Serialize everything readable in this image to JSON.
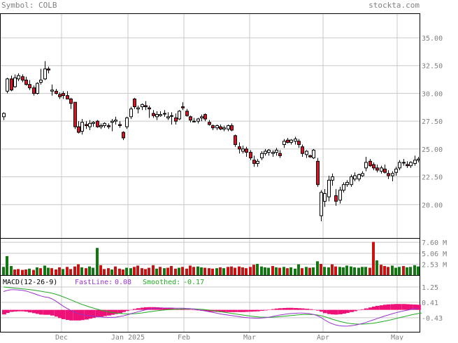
{
  "header": {
    "symbol_label": "Symbol:",
    "symbol": "COLB",
    "brand": "stockta.com"
  },
  "colors": {
    "up_fill": "#ffffff",
    "down_fill": "#dd1122",
    "outline": "#000000",
    "vol_up": "#117711",
    "vol_down": "#cc1111",
    "fast_line": "#9933cc",
    "smooth_line": "#22aa22",
    "histogram": "#ee1177",
    "grid": "#c8c8c8"
  },
  "chart_data": [
    {
      "type": "candlestick",
      "title": "",
      "ylim": [
        17.0,
        37.2
      ],
      "yticks": [
        "35.00",
        "32.50",
        "30.00",
        "27.50",
        "25.00",
        "22.50",
        "20.00"
      ],
      "xticks": [
        "Dec",
        "Jan 2025",
        "Feb",
        "Mar",
        "Apr",
        "May"
      ],
      "grid": true,
      "ohlc": [
        [
          27.9,
          28.3,
          27.6,
          28.2
        ],
        [
          30.2,
          31.4,
          30.0,
          31.3
        ],
        [
          31.3,
          31.6,
          30.2,
          30.3
        ],
        [
          30.6,
          31.7,
          30.5,
          31.4
        ],
        [
          31.3,
          31.8,
          31.1,
          31.6
        ],
        [
          31.5,
          31.7,
          31.0,
          31.2
        ],
        [
          31.2,
          31.5,
          30.7,
          30.8
        ],
        [
          30.8,
          31.2,
          30.3,
          30.5
        ],
        [
          30.5,
          30.7,
          29.8,
          30.0
        ],
        [
          30.0,
          31.0,
          29.9,
          30.9
        ],
        [
          31.0,
          32.2,
          30.8,
          31.2
        ],
        [
          31.3,
          32.9,
          31.2,
          32.2
        ],
        [
          32.2,
          32.4,
          31.8,
          32.1
        ],
        [
          30.2,
          30.8,
          29.8,
          30.3
        ],
        [
          30.2,
          30.4,
          29.9,
          30.0
        ],
        [
          29.9,
          30.1,
          29.5,
          29.7
        ],
        [
          30.0,
          30.2,
          29.5,
          29.8
        ],
        [
          29.8,
          30.2,
          29.5,
          29.5
        ],
        [
          29.5,
          29.6,
          28.6,
          29.1
        ],
        [
          29.2,
          29.2,
          26.8,
          27.0
        ],
        [
          27.0,
          27.5,
          26.4,
          26.5
        ],
        [
          26.6,
          27.7,
          26.3,
          27.4
        ],
        [
          27.2,
          27.5,
          26.8,
          27.1
        ],
        [
          27.0,
          27.6,
          26.7,
          27.3
        ],
        [
          27.3,
          27.5,
          27.0,
          27.4
        ],
        [
          27.5,
          27.6,
          26.9,
          27.0
        ],
        [
          27.0,
          27.3,
          26.8,
          27.1
        ],
        [
          27.1,
          27.4,
          26.9,
          27.3
        ],
        [
          27.1,
          27.3,
          26.8,
          27.0
        ],
        [
          27.4,
          27.7,
          26.6,
          27.5
        ],
        [
          27.5,
          27.9,
          27.2,
          27.6
        ],
        [
          27.2,
          27.5,
          26.9,
          27.1
        ],
        [
          26.5,
          26.6,
          25.8,
          26.0
        ],
        [
          27.0,
          27.9,
          26.8,
          27.8
        ],
        [
          27.9,
          28.8,
          27.7,
          28.6
        ],
        [
          29.5,
          29.6,
          28.6,
          28.8
        ],
        [
          28.6,
          28.9,
          28.2,
          28.7
        ],
        [
          28.8,
          29.1,
          28.5,
          29.0
        ],
        [
          28.9,
          29.3,
          28.5,
          28.8
        ],
        [
          28.7,
          28.9,
          27.8,
          28.6
        ],
        [
          28.2,
          28.5,
          27.8,
          28.0
        ],
        [
          27.9,
          28.4,
          27.6,
          28.1
        ],
        [
          28.0,
          28.4,
          27.9,
          28.1
        ],
        [
          28.2,
          28.5,
          27.9,
          28.2
        ],
        [
          27.8,
          28.3,
          27.6,
          27.9
        ],
        [
          28.0,
          28.3,
          27.2,
          28.0
        ],
        [
          27.8,
          28.2,
          27.2,
          27.5
        ],
        [
          27.7,
          28.5,
          27.6,
          28.4
        ],
        [
          28.8,
          29.2,
          28.5,
          28.7
        ],
        [
          28.4,
          28.6,
          27.9,
          28.0
        ],
        [
          27.9,
          28.0,
          27.4,
          27.6
        ],
        [
          27.5,
          27.8,
          27.4,
          27.5
        ],
        [
          27.5,
          27.8,
          27.3,
          27.7
        ],
        [
          27.8,
          28.1,
          27.5,
          27.9
        ],
        [
          28.1,
          28.2,
          27.5,
          27.7
        ],
        [
          27.4,
          27.6,
          27.1,
          27.2
        ],
        [
          27.1,
          27.2,
          26.7,
          26.9
        ],
        [
          26.9,
          27.2,
          26.7,
          27.1
        ],
        [
          27.0,
          27.2,
          26.7,
          26.8
        ],
        [
          26.8,
          27.1,
          26.6,
          26.9
        ],
        [
          26.8,
          27.2,
          26.6,
          27.1
        ],
        [
          27.1,
          27.3,
          26.6,
          26.7
        ],
        [
          26.2,
          26.3,
          25.2,
          25.4
        ],
        [
          25.2,
          25.6,
          24.6,
          25.0
        ],
        [
          24.8,
          25.3,
          24.6,
          25.0
        ],
        [
          25.0,
          25.2,
          24.3,
          24.7
        ],
        [
          24.7,
          24.9,
          24.0,
          24.2
        ],
        [
          24.0,
          24.4,
          23.4,
          23.7
        ],
        [
          23.7,
          24.1,
          23.4,
          23.9
        ],
        [
          24.2,
          24.8,
          24.0,
          24.6
        ],
        [
          24.6,
          25.0,
          24.4,
          24.8
        ],
        [
          24.7,
          25.0,
          24.4,
          24.9
        ],
        [
          24.6,
          24.9,
          24.3,
          24.7
        ],
        [
          24.7,
          25.1,
          24.4,
          24.9
        ],
        [
          24.6,
          24.9,
          24.2,
          24.4
        ],
        [
          25.4,
          25.9,
          25.1,
          25.7
        ],
        [
          25.8,
          26.0,
          25.5,
          25.6
        ],
        [
          25.6,
          25.9,
          25.4,
          25.8
        ],
        [
          25.7,
          26.1,
          25.4,
          25.9
        ],
        [
          25.7,
          25.9,
          25.1,
          25.4
        ],
        [
          25.2,
          25.4,
          24.3,
          24.6
        ],
        [
          24.5,
          24.9,
          24.2,
          24.8
        ],
        [
          24.4,
          24.5,
          24.2,
          24.3
        ],
        [
          24.2,
          25.0,
          24.1,
          24.9
        ],
        [
          23.9,
          24.2,
          21.6,
          21.8
        ],
        [
          19.0,
          21.3,
          18.5,
          21.1
        ],
        [
          20.3,
          21.4,
          19.8,
          21.0
        ],
        [
          20.7,
          22.6,
          20.3,
          22.2
        ],
        [
          22.2,
          22.8,
          21.7,
          22.5
        ],
        [
          20.8,
          21.4,
          19.9,
          20.3
        ],
        [
          20.4,
          21.6,
          20.1,
          21.3
        ],
        [
          21.3,
          22.0,
          21.1,
          21.8
        ],
        [
          21.8,
          22.2,
          21.6,
          22.0
        ],
        [
          21.8,
          22.7,
          21.6,
          22.5
        ],
        [
          22.3,
          22.9,
          22.1,
          22.6
        ],
        [
          22.3,
          22.8,
          22.1,
          22.7
        ],
        [
          22.6,
          23.0,
          22.5,
          22.8
        ],
        [
          23.3,
          24.3,
          23.0,
          23.8
        ],
        [
          23.9,
          24.1,
          23.4,
          23.5
        ],
        [
          23.6,
          23.8,
          23.1,
          23.3
        ],
        [
          23.3,
          23.6,
          22.9,
          23.1
        ],
        [
          23.0,
          23.5,
          22.8,
          23.3
        ],
        [
          23.2,
          23.6,
          22.8,
          22.9
        ],
        [
          22.8,
          23.1,
          22.3,
          22.6
        ],
        [
          22.6,
          23.0,
          22.1,
          22.8
        ],
        [
          22.9,
          23.4,
          22.6,
          23.2
        ],
        [
          23.3,
          24.0,
          23.1,
          23.8
        ],
        [
          23.8,
          24.1,
          23.5,
          23.8
        ],
        [
          23.6,
          23.9,
          23.3,
          23.5
        ],
        [
          23.5,
          23.9,
          23.3,
          23.8
        ],
        [
          23.7,
          24.4,
          23.5,
          24.0
        ],
        [
          24.0,
          24.3,
          23.8,
          24.1
        ]
      ]
    },
    {
      "type": "bar",
      "title": "",
      "yticks": [
        "7.60 M",
        "5.06 M",
        "2.53 M"
      ],
      "ylim": [
        0,
        8.6
      ],
      "values": [
        1.9,
        4.4,
        2.1,
        1.3,
        1.4,
        1.2,
        1.3,
        1.5,
        1.2,
        1.8,
        1.6,
        2.2,
        1.7,
        1.6,
        1.3,
        1.8,
        1.4,
        1.9,
        1.4,
        2.0,
        2.5,
        1.8,
        1.6,
        2.0,
        1.7,
        6.3,
        2.3,
        1.4,
        1.6,
        1.3,
        2.0,
        1.5,
        1.3,
        1.7,
        1.6,
        1.9,
        2.2,
        1.6,
        1.4,
        1.7,
        2.3,
        1.5,
        1.9,
        1.6,
        1.7,
        2.1,
        1.5,
        1.7,
        1.9,
        1.5,
        2.2,
        1.9,
        2.0,
        1.8,
        1.7,
        1.6,
        1.5,
        1.6,
        1.8,
        1.6,
        1.9,
        2.0,
        1.7,
        2.0,
        1.8,
        1.6,
        1.9,
        2.4,
        2.6,
        2.0,
        1.8,
        1.7,
        2.1,
        1.8,
        1.7,
        1.9,
        1.6,
        1.8,
        1.5,
        2.5,
        1.6,
        1.9,
        1.7,
        1.8,
        3.2,
        2.6,
        1.9,
        1.8,
        2.5,
        2.0,
        1.9,
        1.8,
        2.2,
        2.0,
        1.8,
        1.7,
        1.9,
        1.9,
        1.7,
        7.7,
        3.4,
        2.4,
        2.1,
        1.9,
        2.2,
        1.7,
        1.9,
        2.1,
        1.8,
        1.9,
        2.3,
        2.0
      ],
      "up": [
        1,
        1,
        1,
        0,
        0,
        0,
        0,
        1,
        0,
        1,
        0,
        1,
        1,
        0,
        0,
        0,
        1,
        0,
        0,
        0,
        0,
        1,
        0,
        1,
        1,
        1,
        0,
        0,
        0,
        1,
        0,
        0,
        0,
        1,
        1,
        0,
        0,
        0,
        0,
        0,
        0,
        1,
        0,
        1,
        0,
        0,
        0,
        1,
        0,
        0,
        0,
        0,
        1,
        1,
        0,
        0,
        0,
        1,
        0,
        1,
        0,
        0,
        0,
        0,
        0,
        0,
        0,
        0,
        1,
        1,
        1,
        1,
        0,
        1,
        0,
        1,
        0,
        1,
        1,
        1,
        0,
        1,
        0,
        1,
        1,
        0,
        1,
        1,
        0,
        0,
        1,
        1,
        1,
        1,
        1,
        1,
        1,
        1,
        0,
        0,
        1,
        0,
        0,
        0,
        1,
        1,
        1,
        0,
        1,
        1,
        1,
        1
      ]
    },
    {
      "type": "line",
      "title": "MACD(12-26-9)",
      "yticks": [
        "1.25",
        "0.41",
        "-0.43"
      ],
      "ylim": [
        -1.2,
        1.9
      ],
      "series": [
        {
          "name": "FastLine",
          "last": "0.08",
          "values": [
            1.0,
            1.06,
            1.1,
            1.1,
            1.09,
            1.07,
            1.03,
            0.97,
            0.9,
            0.83,
            0.76,
            0.71,
            0.68,
            0.6,
            0.48,
            0.34,
            0.2,
            0.08,
            -0.03,
            -0.12,
            -0.2,
            -0.26,
            -0.3,
            -0.32,
            -0.34,
            -0.36,
            -0.38,
            -0.4,
            -0.41,
            -0.41,
            -0.4,
            -0.37,
            -0.33,
            -0.28,
            -0.22,
            -0.16,
            -0.1,
            -0.05,
            0.0,
            0.04,
            0.07,
            0.09,
            0.1,
            0.1,
            0.1,
            0.1,
            0.09,
            0.09,
            0.09,
            0.08,
            0.07,
            0.04,
            0.01,
            -0.02,
            -0.06,
            -0.1,
            -0.14,
            -0.18,
            -0.22,
            -0.25,
            -0.28,
            -0.31,
            -0.34,
            -0.37,
            -0.4,
            -0.42,
            -0.44,
            -0.45,
            -0.46,
            -0.45,
            -0.43,
            -0.4,
            -0.36,
            -0.32,
            -0.28,
            -0.25,
            -0.22,
            -0.2,
            -0.19,
            -0.18,
            -0.18,
            -0.19,
            -0.21,
            -0.25,
            -0.32,
            -0.42,
            -0.55,
            -0.67,
            -0.76,
            -0.83,
            -0.87,
            -0.89,
            -0.89,
            -0.87,
            -0.84,
            -0.8,
            -0.75,
            -0.69,
            -0.62,
            -0.55,
            -0.48,
            -0.41,
            -0.34,
            -0.28,
            -0.22,
            -0.16,
            -0.11,
            -0.06,
            -0.02,
            0.02,
            0.05,
            0.08
          ]
        },
        {
          "name": "Smoothed",
          "last": "-0.17",
          "values": [
            1.25,
            1.23,
            1.21,
            1.19,
            1.17,
            1.15,
            1.13,
            1.11,
            1.08,
            1.05,
            1.02,
            0.98,
            0.95,
            0.91,
            0.85,
            0.79,
            0.71,
            0.63,
            0.55,
            0.46,
            0.38,
            0.3,
            0.23,
            0.16,
            0.1,
            0.04,
            -0.01,
            -0.06,
            -0.1,
            -0.14,
            -0.17,
            -0.19,
            -0.21,
            -0.22,
            -0.22,
            -0.21,
            -0.19,
            -0.17,
            -0.14,
            -0.11,
            -0.08,
            -0.05,
            -0.03,
            -0.01,
            0.01,
            0.02,
            0.03,
            0.04,
            0.05,
            0.05,
            0.05,
            0.05,
            0.04,
            0.03,
            0.01,
            -0.01,
            -0.04,
            -0.07,
            -0.1,
            -0.13,
            -0.16,
            -0.19,
            -0.22,
            -0.25,
            -0.28,
            -0.31,
            -0.34,
            -0.36,
            -0.38,
            -0.4,
            -0.4,
            -0.41,
            -0.4,
            -0.39,
            -0.37,
            -0.35,
            -0.33,
            -0.31,
            -0.29,
            -0.27,
            -0.26,
            -0.25,
            -0.25,
            -0.26,
            -0.28,
            -0.32,
            -0.37,
            -0.44,
            -0.51,
            -0.57,
            -0.63,
            -0.68,
            -0.72,
            -0.75,
            -0.77,
            -0.78,
            -0.78,
            -0.77,
            -0.75,
            -0.73,
            -0.7,
            -0.66,
            -0.62,
            -0.58,
            -0.53,
            -0.48,
            -0.43,
            -0.38,
            -0.33,
            -0.28,
            -0.24,
            -0.2,
            -0.17
          ]
        }
      ]
    }
  ]
}
